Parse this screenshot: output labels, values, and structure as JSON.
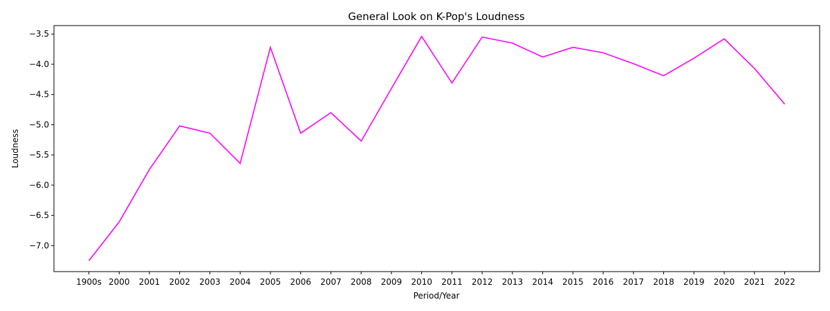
{
  "chart_data": {
    "type": "line",
    "title": "General Look on K-Pop's Loudness",
    "xlabel": "Period/Year",
    "ylabel": "Loudness",
    "categories": [
      "1900s",
      "2000",
      "2001",
      "2002",
      "2003",
      "2004",
      "2005",
      "2006",
      "2007",
      "2008",
      "2009",
      "2010",
      "2011",
      "2012",
      "2013",
      "2014",
      "2015",
      "2016",
      "2017",
      "2018",
      "2019",
      "2020",
      "2021",
      "2022"
    ],
    "series": [
      {
        "values": [
          -7.25,
          -6.61,
          -5.74,
          -5.02,
          -5.14,
          -5.64,
          -3.72,
          -5.14,
          -4.8,
          -5.27,
          -4.4,
          -3.54,
          -4.31,
          -3.55,
          -3.65,
          -3.88,
          -3.72,
          -3.81,
          -3.99,
          -4.19,
          -3.9,
          -3.58,
          -4.07,
          -4.66
        ],
        "color": "#ff00ff"
      }
    ],
    "yticks": [
      -7.0,
      -6.5,
      -6.0,
      -5.5,
      -5.0,
      -4.5,
      -4.0,
      -3.5
    ],
    "ylim": [
      -7.43,
      -3.36
    ],
    "grid": false,
    "legend": "none"
  }
}
